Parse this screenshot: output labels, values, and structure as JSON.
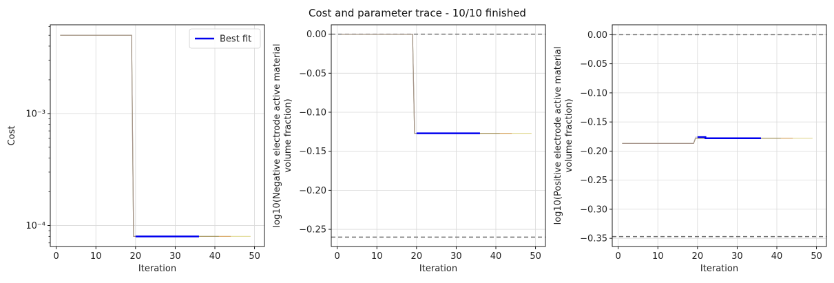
{
  "figure": {
    "suptitle": "Cost and parameter trace - 10/10 finished"
  },
  "chart_data": [
    {
      "type": "line",
      "xlabel": "Iteration",
      "ylabel": "Cost",
      "yscale": "log",
      "xlim": [
        -1.5,
        52.5
      ],
      "ylim": [
        6.5e-05,
        0.0062
      ],
      "xticks": [
        0,
        10,
        20,
        30,
        40,
        50
      ],
      "xtick_labels": [
        "0",
        "10",
        "20",
        "30",
        "40",
        "50"
      ],
      "yticks": [
        0.0001,
        0.001
      ],
      "ytick_labels": [
        "10⁻⁴",
        "10⁻³"
      ],
      "grid": true,
      "legend": {
        "position": "top-right",
        "entries": [
          {
            "label": "Best fit",
            "color": "#0000ee"
          }
        ]
      },
      "series": [
        {
          "color": "#c8ba3a",
          "opacity": 0.55,
          "width": 1.2,
          "x": [
            1,
            19,
            19.5,
            49
          ],
          "y": [
            0.005,
            0.005,
            8e-05,
            8e-05
          ]
        },
        {
          "color": "#2a9d8f",
          "opacity": 0.55,
          "width": 1.2,
          "x": [
            1,
            19,
            19.5,
            41
          ],
          "y": [
            0.005,
            0.005,
            8e-05,
            8e-05
          ]
        },
        {
          "color": "#d17a3a",
          "opacity": 0.55,
          "width": 1.2,
          "x": [
            1,
            19,
            19.5,
            44
          ],
          "y": [
            0.005,
            0.005,
            8e-05,
            8e-05
          ]
        },
        {
          "color": "#9c8bb8",
          "opacity": 0.45,
          "width": 1.2,
          "x": [
            1,
            19,
            19.5,
            36
          ],
          "y": [
            0.005,
            0.005,
            8e-05,
            8e-05
          ]
        },
        {
          "color": "#0000ee",
          "opacity": 1,
          "width": 2.5,
          "x": [
            20,
            36
          ],
          "y": [
            8e-05,
            8e-05
          ]
        }
      ],
      "hlines": []
    },
    {
      "type": "line",
      "xlabel": "Iteration",
      "ylabel_lines": [
        "log10(Negative electrode active material",
        "volume fraction)"
      ],
      "yscale": "linear",
      "xlim": [
        -1.5,
        52.5
      ],
      "ylim": [
        -0.272,
        0.012
      ],
      "xticks": [
        0,
        10,
        20,
        30,
        40,
        50
      ],
      "xtick_labels": [
        "0",
        "10",
        "20",
        "30",
        "40",
        "50"
      ],
      "yticks": [
        0.0,
        -0.05,
        -0.1,
        -0.15,
        -0.2,
        -0.25
      ],
      "ytick_labels": [
        "0.00",
        "−0.05",
        "−0.10",
        "−0.15",
        "−0.20",
        "−0.25"
      ],
      "grid": true,
      "series": [
        {
          "color": "#c8ba3a",
          "opacity": 0.55,
          "width": 1.2,
          "x": [
            1,
            19,
            19.5,
            49
          ],
          "y": [
            0.0,
            0.0,
            -0.127,
            -0.127
          ]
        },
        {
          "color": "#2a9d8f",
          "opacity": 0.55,
          "width": 1.2,
          "x": [
            1,
            19,
            19.5,
            41
          ],
          "y": [
            0.0,
            0.0,
            -0.127,
            -0.127
          ]
        },
        {
          "color": "#d17a3a",
          "opacity": 0.55,
          "width": 1.2,
          "x": [
            1,
            19,
            19.5,
            44
          ],
          "y": [
            0.0,
            0.0,
            -0.127,
            -0.127
          ]
        },
        {
          "color": "#9c8bb8",
          "opacity": 0.45,
          "width": 1.2,
          "x": [
            1,
            19,
            19.5,
            36
          ],
          "y": [
            0.0,
            0.0,
            -0.127,
            -0.127
          ]
        },
        {
          "color": "#0000ee",
          "opacity": 1,
          "width": 2.5,
          "x": [
            20,
            36
          ],
          "y": [
            -0.127,
            -0.127
          ]
        }
      ],
      "hlines": [
        0.0,
        -0.26
      ]
    },
    {
      "type": "line",
      "xlabel": "Iteration",
      "ylabel_lines": [
        "log10(Positive electrode active material",
        "volume fraction)"
      ],
      "yscale": "linear",
      "xlim": [
        -1.5,
        52.5
      ],
      "ylim": [
        -0.364,
        0.017
      ],
      "xticks": [
        0,
        10,
        20,
        30,
        40,
        50
      ],
      "xtick_labels": [
        "0",
        "10",
        "20",
        "30",
        "40",
        "50"
      ],
      "yticks": [
        0.0,
        -0.05,
        -0.1,
        -0.15,
        -0.2,
        -0.25,
        -0.3,
        -0.35
      ],
      "ytick_labels": [
        "0.00",
        "−0.05",
        "−0.10",
        "−0.15",
        "−0.20",
        "−0.25",
        "−0.30",
        "−0.35"
      ],
      "grid": true,
      "series": [
        {
          "color": "#c8ba3a",
          "opacity": 0.55,
          "width": 1.2,
          "x": [
            1,
            19,
            19.5,
            49
          ],
          "y": [
            -0.187,
            -0.187,
            -0.178,
            -0.178
          ]
        },
        {
          "color": "#2a9d8f",
          "opacity": 0.55,
          "width": 1.2,
          "x": [
            1,
            19,
            19.5,
            41
          ],
          "y": [
            -0.187,
            -0.187,
            -0.178,
            -0.178
          ]
        },
        {
          "color": "#d17a3a",
          "opacity": 0.55,
          "width": 1.2,
          "x": [
            1,
            19,
            19.5,
            44
          ],
          "y": [
            -0.187,
            -0.187,
            -0.178,
            -0.178
          ]
        },
        {
          "color": "#9c8bb8",
          "opacity": 0.45,
          "width": 1.2,
          "x": [
            1,
            19,
            19.5,
            22,
            22,
            36
          ],
          "y": [
            -0.187,
            -0.187,
            -0.176,
            -0.176,
            -0.178,
            -0.178
          ]
        },
        {
          "color": "#0000ee",
          "opacity": 1,
          "width": 2.5,
          "x": [
            20,
            22,
            22,
            36
          ],
          "y": [
            -0.176,
            -0.176,
            -0.178,
            -0.178
          ]
        }
      ],
      "hlines": [
        0.0,
        -0.347
      ]
    }
  ]
}
